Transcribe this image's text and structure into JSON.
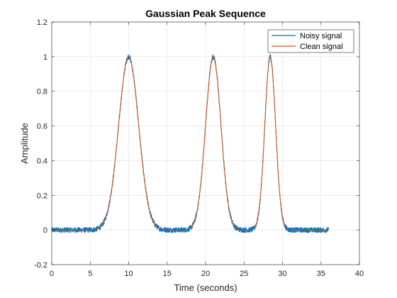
{
  "chart_data": {
    "type": "line",
    "title": "Gaussian Peak Sequence",
    "xlabel": "Time (seconds)",
    "ylabel": "Amplitude",
    "xlim": [
      0,
      40
    ],
    "ylim": [
      -0.2,
      1.2
    ],
    "xticks": [
      0,
      5,
      10,
      15,
      20,
      25,
      30,
      35,
      40
    ],
    "yticks": [
      -0.2,
      0,
      0.2,
      0.4,
      0.6,
      0.8,
      1,
      1.2
    ],
    "xtick_labels": [
      "0",
      "5",
      "10",
      "15",
      "20",
      "25",
      "30",
      "35",
      "40"
    ],
    "ytick_labels": [
      "-0.2",
      "0",
      "0.2",
      "0.4",
      "0.6",
      "0.8",
      "1",
      "1.2"
    ],
    "grid": true,
    "legend_position": "top-right",
    "x_range": [
      0,
      36
    ],
    "peaks": [
      {
        "center": 10,
        "amplitude": 1,
        "sigma": 1.3
      },
      {
        "center": 21,
        "amplitude": 1,
        "sigma": 1
      },
      {
        "center": 28.4,
        "amplitude": 1,
        "sigma": 0.7
      }
    ],
    "noise_amplitude": 0.015,
    "series": [
      {
        "name": "Noisy signal",
        "color": "#0072BD"
      },
      {
        "name": "Clean signal",
        "color": "#D95319"
      }
    ]
  }
}
